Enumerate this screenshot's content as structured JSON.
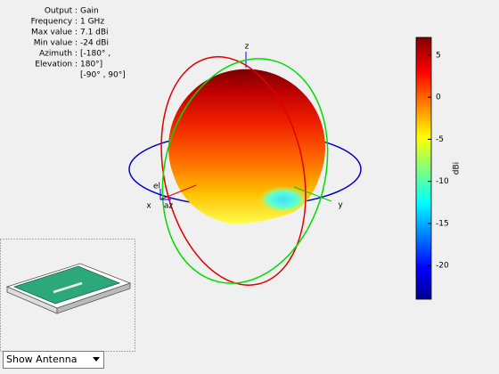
{
  "info": {
    "lines": [
      {
        "label": "Output :",
        "value": "Gain"
      },
      {
        "label": "Frequency :",
        "value": "1 GHz"
      },
      {
        "label": "Max value :",
        "value": "7.1 dBi"
      },
      {
        "label": "Min value :",
        "value": "-24 dBi"
      },
      {
        "label": "Azimuth :",
        "value": "[-180° ,"
      },
      {
        "label": "Elevation :",
        "value": "180°]"
      },
      {
        "label": "",
        "value": "[-90° , 90°]"
      }
    ]
  },
  "axes": {
    "x": "x",
    "y": "y",
    "z": "z",
    "az": "az",
    "el": "el"
  },
  "colorbar": {
    "label": "dBi",
    "clim": [
      -24,
      7.1
    ],
    "ticks": [
      5,
      0,
      -5,
      -10,
      -15,
      -20
    ]
  },
  "dropdown": {
    "selected": "Show Antenna"
  }
}
